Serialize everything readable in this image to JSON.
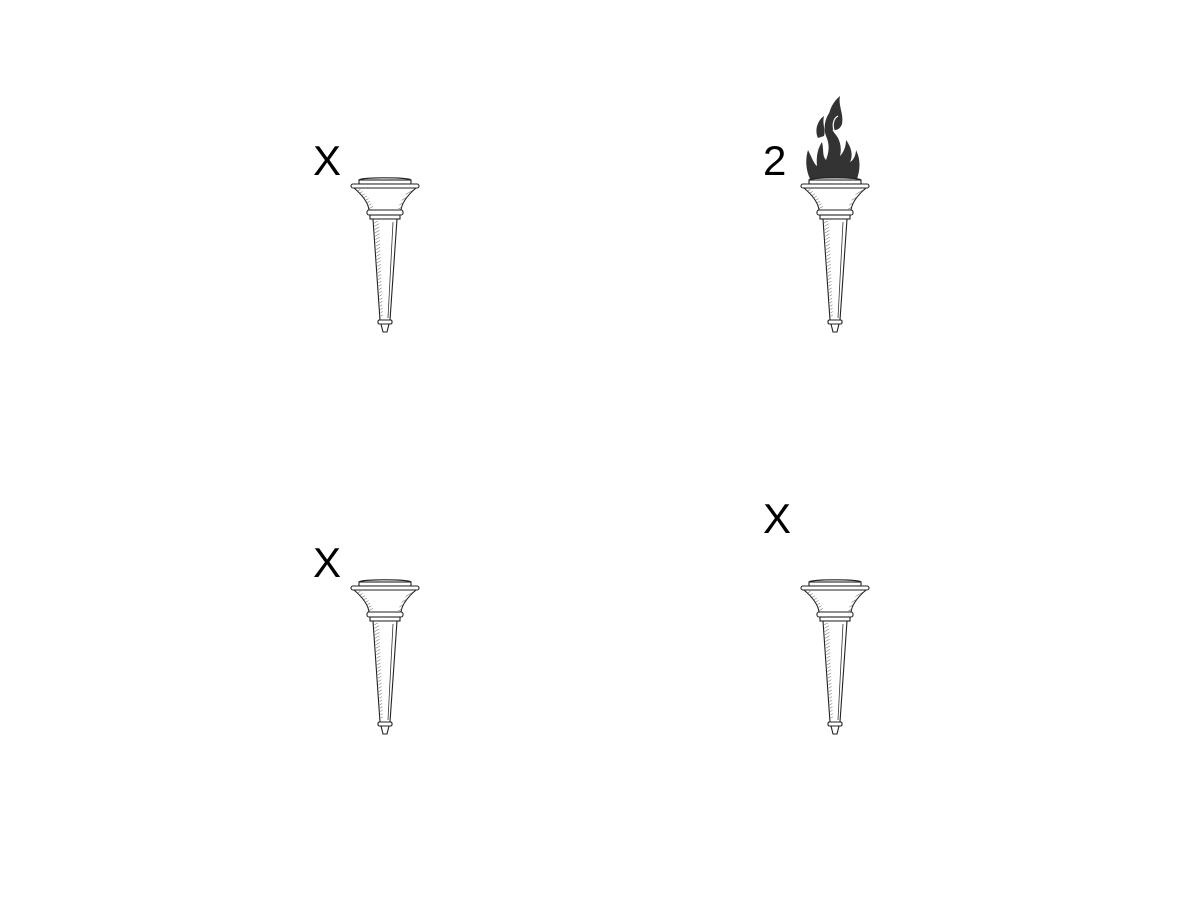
{
  "torches": [
    {
      "label": "X",
      "lit": false
    },
    {
      "label": "2",
      "lit": true
    },
    {
      "label": "X",
      "lit": false
    },
    {
      "label": "X",
      "lit": false
    }
  ],
  "colors": {
    "flame": "#333333",
    "outline": "#222222",
    "background": "#ffffff"
  },
  "icons": {
    "torch": "torch-icon",
    "flame": "flame-icon"
  }
}
